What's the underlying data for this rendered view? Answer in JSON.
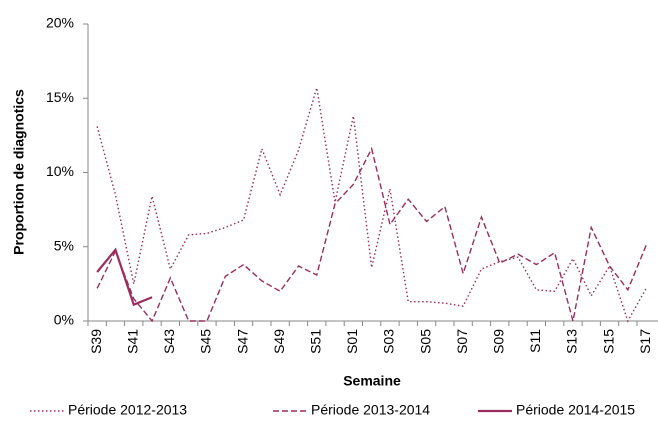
{
  "chart_data": {
    "type": "line",
    "y_label": "Proportion de diagnotics",
    "x_label": "Semaine",
    "categories": [
      "S39",
      null,
      "S41",
      null,
      "S43",
      null,
      "S45",
      null,
      "S47",
      null,
      "S49",
      null,
      "S51",
      null,
      "S01",
      null,
      "S03",
      null,
      "S05",
      null,
      "S07",
      null,
      "S09",
      null,
      "S11",
      null,
      "S13",
      null,
      "S15",
      null,
      "S17"
    ],
    "series": [
      {
        "name": "Période 2012-2013",
        "color": "#9b2d5e",
        "dash": "dotted",
        "values": [
          13.1,
          8.5,
          2.5,
          8.4,
          3.5,
          5.8,
          5.9,
          6.3,
          6.8,
          11.6,
          8.5,
          11.5,
          15.7,
          8.0,
          13.8,
          3.6,
          8.9,
          1.3,
          1.3,
          1.2,
          1.0,
          3.5,
          4.0,
          4.3,
          2.1,
          2.0,
          4.2,
          1.7,
          3.7,
          0,
          2.2
        ]
      },
      {
        "name": "Période 2013-2014",
        "color": "#9b2d5e",
        "dash": "dashed",
        "values": [
          2.2,
          4.7,
          1.5,
          0,
          2.9,
          0,
          0,
          3.0,
          3.8,
          2.7,
          2.0,
          3.7,
          3.1,
          7.9,
          9.2,
          11.6,
          6.5,
          8.2,
          6.7,
          7.7,
          3.2,
          7.0,
          3.9,
          4.5,
          3.8,
          4.6,
          0,
          6.3,
          3.7,
          2.1,
          5.1
        ]
      },
      {
        "name": "Période 2014-2015",
        "color": "#9b2d5e",
        "dash": "solid",
        "values": [
          3.3,
          4.8,
          1.1,
          1.6,
          null,
          null,
          null,
          null,
          null,
          null,
          null,
          null,
          null,
          null,
          null,
          null,
          null,
          null,
          null,
          null,
          null,
          null,
          null,
          null,
          null,
          null,
          null,
          null,
          null,
          null,
          null
        ]
      }
    ],
    "ylim": [
      0,
      20
    ],
    "yticks": [
      {
        "value": 0,
        "label": "0%"
      },
      {
        "value": 5,
        "label": "5%"
      },
      {
        "value": 10,
        "label": "10%"
      },
      {
        "value": 15,
        "label": "15%"
      },
      {
        "value": 20,
        "label": "20%"
      }
    ],
    "legend": "bottom"
  }
}
